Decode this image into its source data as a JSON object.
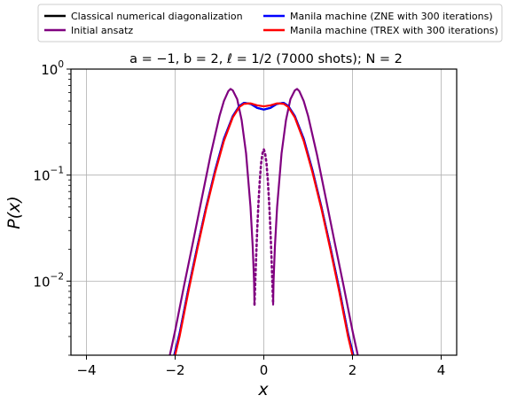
{
  "chart_data": {
    "type": "line",
    "title": "a = −1, b = 2, ℓ = 1/2 (7000 shots); N = 2",
    "xlabel": "x",
    "ylabel": "P(x)",
    "xlim": [
      -4.35,
      4.35
    ],
    "ylim": [
      0.002,
      1.0
    ],
    "yscale": "log",
    "grid": true,
    "legend_placement": "top, outside plot, two columns",
    "xticks": [
      -4,
      -2,
      0,
      2,
      4
    ],
    "xtick_labels": [
      "−4",
      "−2",
      "0",
      "2",
      "4"
    ],
    "yticks": [
      {
        "value": 1.0,
        "base": "10",
        "exp": "0"
      },
      {
        "value": 0.1,
        "base": "10",
        "exp": "−1"
      },
      {
        "value": 0.01,
        "base": "10",
        "exp": "−2"
      }
    ],
    "legend": [
      {
        "label": "Classical numerical diagonalization",
        "color": "#000000"
      },
      {
        "label": "Initial ansatz",
        "color": "#800080"
      },
      {
        "label": "Manila machine (ZNE with 300 iterations)",
        "color": "#0000ff"
      },
      {
        "label": "Manila machine (TREX with 300 iterations)",
        "color": "#ff0000"
      }
    ],
    "series": [
      {
        "name": "Initial ansatz",
        "color": "#800080",
        "style": "solid",
        "segments": [
          {
            "x": [
              -2.12,
              -2.0,
              -1.8,
              -1.6,
              -1.4,
              -1.2,
              -1.0,
              -0.9,
              -0.8,
              -0.75,
              -0.7,
              -0.6,
              -0.5,
              -0.4,
              -0.3,
              -0.25,
              -0.22,
              -0.21
            ],
            "y": [
              0.002,
              0.0034,
              0.009,
              0.023,
              0.06,
              0.155,
              0.36,
              0.5,
              0.62,
              0.65,
              0.63,
              0.52,
              0.33,
              0.16,
              0.05,
              0.021,
              0.01,
              0.006
            ]
          },
          {
            "x": [
              0.21,
              0.22,
              0.25,
              0.3,
              0.4,
              0.5,
              0.6,
              0.7,
              0.75,
              0.8,
              0.9,
              1.0,
              1.2,
              1.4,
              1.6,
              1.8,
              2.0,
              2.12
            ],
            "y": [
              0.006,
              0.01,
              0.021,
              0.05,
              0.16,
              0.33,
              0.52,
              0.63,
              0.65,
              0.62,
              0.5,
              0.36,
              0.155,
              0.06,
              0.023,
              0.009,
              0.0034,
              0.002
            ]
          }
        ]
      },
      {
        "name": "Initial ansatz",
        "color": "#800080",
        "style": "dotted",
        "segments": [
          {
            "x": [
              -0.21,
              -0.18,
              -0.15,
              -0.12,
              -0.09,
              -0.06,
              -0.03,
              0.0,
              0.03,
              0.06,
              0.09,
              0.12,
              0.15,
              0.18,
              0.21
            ],
            "y": [
              0.006,
              0.014,
              0.03,
              0.055,
              0.09,
              0.13,
              0.16,
              0.175,
              0.16,
              0.13,
              0.09,
              0.055,
              0.03,
              0.014,
              0.006
            ]
          }
        ]
      },
      {
        "name": "Classical numerical diagonalization",
        "color": "#000000",
        "style": "solid",
        "segments": [
          {
            "x": [
              -2.02,
              -1.9,
              -1.7,
              -1.5,
              -1.3,
              -1.1,
              -0.9,
              -0.7,
              -0.55,
              -0.45,
              -0.3,
              -0.15,
              0.0,
              0.15,
              0.3,
              0.45,
              0.55,
              0.7,
              0.9,
              1.1,
              1.3,
              1.5,
              1.7,
              1.9,
              2.02
            ],
            "y": [
              0.002,
              0.0032,
              0.0085,
              0.021,
              0.05,
              0.11,
              0.22,
              0.36,
              0.45,
              0.48,
              0.47,
              0.43,
              0.415,
              0.43,
              0.47,
              0.48,
              0.45,
              0.36,
              0.22,
              0.11,
              0.05,
              0.021,
              0.0085,
              0.0032,
              0.002
            ]
          }
        ]
      },
      {
        "name": "Manila machine (ZNE with 300 iterations)",
        "color": "#0000ff",
        "style": "solid",
        "segments": [
          {
            "x": [
              -2.02,
              -1.9,
              -1.7,
              -1.5,
              -1.3,
              -1.1,
              -0.9,
              -0.7,
              -0.55,
              -0.45,
              -0.3,
              -0.15,
              0.0,
              0.15,
              0.3,
              0.45,
              0.55,
              0.7,
              0.9,
              1.1,
              1.3,
              1.5,
              1.7,
              1.9,
              2.02
            ],
            "y": [
              0.002,
              0.0032,
              0.0085,
              0.021,
              0.05,
              0.11,
              0.22,
              0.36,
              0.45,
              0.48,
              0.47,
              0.43,
              0.415,
              0.43,
              0.47,
              0.48,
              0.45,
              0.36,
              0.22,
              0.11,
              0.05,
              0.021,
              0.0085,
              0.0032,
              0.002
            ]
          }
        ]
      },
      {
        "name": "Manila machine (TREX with 300 iterations)",
        "color": "#ff0000",
        "style": "solid",
        "segments": [
          {
            "x": [
              -2.0,
              -1.9,
              -1.7,
              -1.5,
              -1.3,
              -1.1,
              -0.9,
              -0.7,
              -0.55,
              -0.45,
              -0.3,
              -0.15,
              0.0,
              0.15,
              0.3,
              0.45,
              0.55,
              0.7,
              0.9,
              1.1,
              1.3,
              1.5,
              1.7,
              1.9,
              2.0
            ],
            "y": [
              0.002,
              0.003,
              0.008,
              0.02,
              0.048,
              0.105,
              0.21,
              0.35,
              0.44,
              0.47,
              0.475,
              0.455,
              0.445,
              0.455,
              0.475,
              0.47,
              0.44,
              0.35,
              0.21,
              0.105,
              0.048,
              0.02,
              0.008,
              0.003,
              0.002
            ]
          }
        ]
      }
    ]
  }
}
